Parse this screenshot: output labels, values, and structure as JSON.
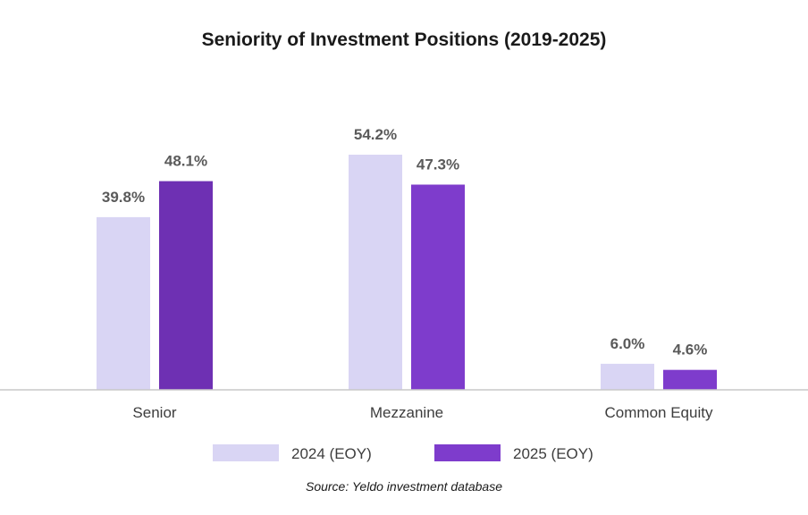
{
  "chart_data": {
    "type": "bar",
    "title": "Seniority of Investment Positions (2019-2025)",
    "categories": [
      "Senior",
      "Mezzanine",
      "Common Equity"
    ],
    "series": [
      {
        "name": "2024 (EOY)",
        "values": [
          39.8,
          54.2,
          6.0
        ],
        "labels": [
          "39.8%",
          "54.2%",
          "6.0%"
        ],
        "color": "#d9d5f4"
      },
      {
        "name": "2025 (EOY)",
        "values": [
          48.1,
          47.3,
          4.6
        ],
        "labels": [
          "48.1%",
          "47.3%",
          "4.6%"
        ],
        "colors": [
          "#6e30b3",
          "#7e3ccc",
          "#7e3ccc"
        ]
      }
    ],
    "ylim": [
      0,
      54.2
    ],
    "grid": false,
    "legend_position": "bottom",
    "source": "Source: Yeldo investment database"
  }
}
